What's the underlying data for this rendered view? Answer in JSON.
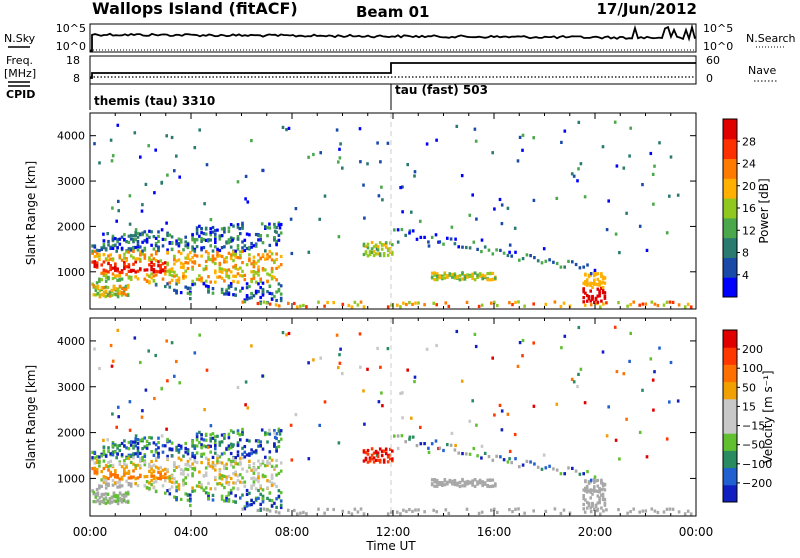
{
  "header": {
    "station": "Wallops Island (fitACF)",
    "beam": "Beam 01",
    "date": "17/Jun/2012"
  },
  "strip_nsky": {
    "left_label": "N.Sky",
    "left_ticks": [
      "10^5",
      "10^0"
    ],
    "right_label": "N.Search",
    "right_ticks": [
      "10^5",
      "10^0"
    ]
  },
  "strip_freq": {
    "left_label_line1": "Freq.",
    "left_label_line2": "[MHz]",
    "left_ticks": [
      "18",
      "8"
    ],
    "right_label": "Nave",
    "right_ticks": [
      "60",
      "0"
    ],
    "cpid_label": "CPID",
    "modes": [
      "themis (tau) 3310",
      "tau (fast) 503"
    ]
  },
  "colors": {
    "power_scale": [
      "#0000ff",
      "#1a4aa8",
      "#2a7a70",
      "#4aa84a",
      "#90c820",
      "#ffb000",
      "#ff7a00",
      "#ff3000",
      "#e00000"
    ],
    "velocity_scale": [
      "#1020c0",
      "#2060d0",
      "#2a8a60",
      "#60c030",
      "#c8c8c8",
      "#c8c8c8",
      "#f0a000",
      "#ff7000",
      "#ff3800",
      "#e00000"
    ],
    "ground_scatter": "#a8a8a8"
  },
  "chart_data": [
    {
      "type": "heatmap",
      "name": "power-panel",
      "ylabel": "Slant Range [km]",
      "xlabel": "",
      "xlim": [
        0,
        24
      ],
      "ylim": [
        180,
        4500
      ],
      "yticks": [
        "1000",
        "2000",
        "3000",
        "4000"
      ],
      "colorbar": {
        "label": "Power [dB]",
        "ticks": [
          "4",
          "8",
          "12",
          "16",
          "20",
          "24",
          "28"
        ]
      },
      "mode_change_time": 12
    },
    {
      "type": "heatmap",
      "name": "velocity-panel",
      "ylabel": "Slant Range [km]",
      "xlabel": "Time UT",
      "xlim": [
        0,
        24
      ],
      "ylim": [
        180,
        4500
      ],
      "xticks": [
        "00:00",
        "04:00",
        "08:00",
        "12:00",
        "16:00",
        "20:00",
        "00:00"
      ],
      "yticks": [
        "1000",
        "2000",
        "3000",
        "4000"
      ],
      "colorbar": {
        "label": "Velocity [m s⁻¹]",
        "ticks": [
          "200",
          "100",
          "50",
          "15",
          "−15",
          "−50",
          "−100",
          "−200"
        ]
      },
      "mode_change_time": 12
    }
  ]
}
